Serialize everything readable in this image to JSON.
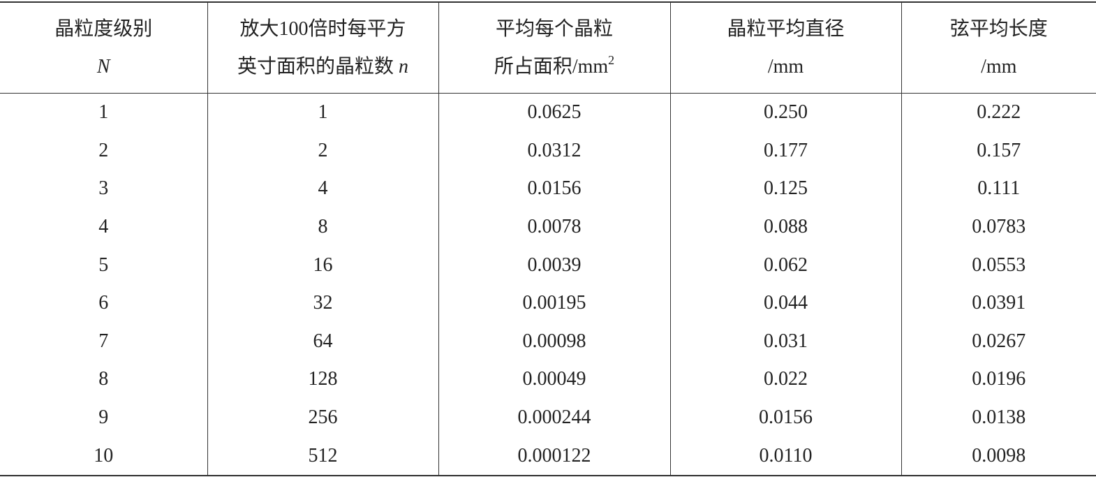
{
  "header": [
    [
      "晶粒度级别",
      "N"
    ],
    [
      "放大100倍时每平方",
      "英寸面积的晶粒数",
      "n"
    ],
    [
      "平均每个晶粒",
      "所占面积/mm",
      "2"
    ],
    [
      "晶粒平均直径",
      "/mm"
    ],
    [
      "弦平均长度",
      "/mm"
    ]
  ],
  "table": {
    "rows": [
      [
        "1",
        "1",
        "0.0625",
        "0.250",
        "0.222"
      ],
      [
        "2",
        "2",
        "0.0312",
        "0.177",
        "0.157"
      ],
      [
        "3",
        "4",
        "0.0156",
        "0.125",
        "0.111"
      ],
      [
        "4",
        "8",
        "0.0078",
        "0.088",
        "0.0783"
      ],
      [
        "5",
        "16",
        "0.0039",
        "0.062",
        "0.0553"
      ],
      [
        "6",
        "32",
        "0.00195",
        "0.044",
        "0.0391"
      ],
      [
        "7",
        "64",
        "0.00098",
        "0.031",
        "0.0267"
      ],
      [
        "8",
        "128",
        "0.00049",
        "0.022",
        "0.0196"
      ],
      [
        "9",
        "256",
        "0.000244",
        "0.0156",
        "0.0138"
      ],
      [
        "10",
        "512",
        "0.000122",
        "0.0110",
        "0.0098"
      ]
    ]
  }
}
